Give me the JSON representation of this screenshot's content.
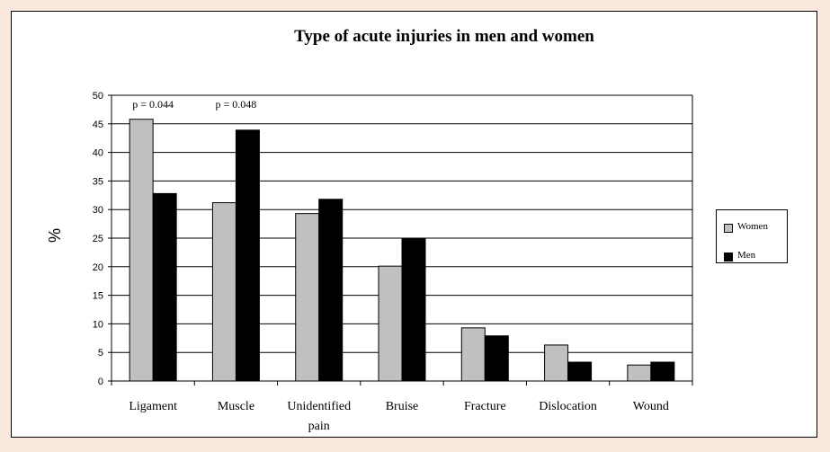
{
  "chart_data": {
    "type": "bar",
    "title": "Type of acute injuries in men and women",
    "xlabel": "",
    "ylabel": "%",
    "ylim": [
      0,
      50
    ],
    "yticks": [
      0,
      5,
      10,
      15,
      20,
      25,
      30,
      35,
      40,
      45,
      50
    ],
    "grid": true,
    "legend_position": "right",
    "categories": [
      [
        "Ligament"
      ],
      [
        "Muscle"
      ],
      [
        "Unidentified",
        "pain"
      ],
      [
        "Bruise"
      ],
      [
        "Fracture"
      ],
      [
        "Dislocation"
      ],
      [
        "Wound"
      ]
    ],
    "series": [
      {
        "name": "Women",
        "color": "#c0c0c0",
        "values": [
          45.8,
          31.2,
          29.3,
          20.1,
          9.3,
          6.3,
          2.8
        ]
      },
      {
        "name": "Men",
        "color": "#000000",
        "values": [
          32.8,
          43.9,
          31.8,
          25.0,
          7.9,
          3.3,
          3.3
        ]
      }
    ],
    "annotations": [
      {
        "text": "p = 0.044",
        "category_index": 0,
        "y": 50
      },
      {
        "text": "p = 0.048",
        "category_index": 1,
        "y": 50
      }
    ]
  }
}
